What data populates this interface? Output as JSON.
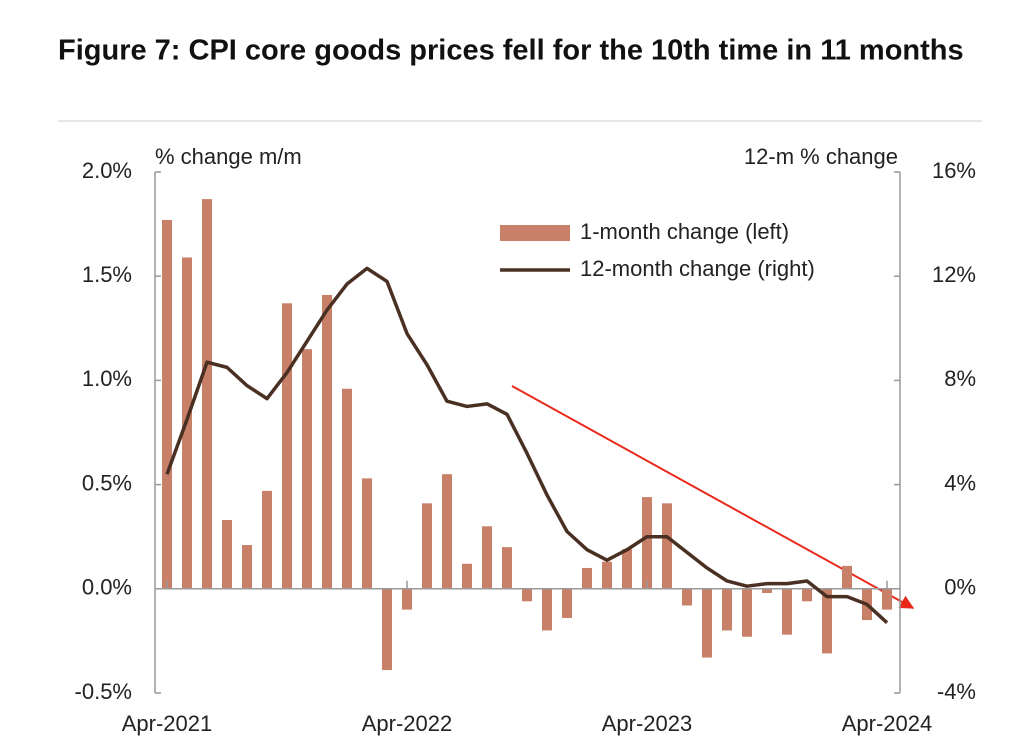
{
  "chart_data": {
    "type": "bar_line",
    "title": "Figure 7: CPI core goods prices fell for the 10th time in 11 months",
    "y_label": "% change m/m",
    "y2_label": "12-m % change",
    "categories": [
      "Apr-2021",
      null,
      null,
      null,
      null,
      null,
      null,
      null,
      null,
      null,
      null,
      null,
      "Apr-2022",
      null,
      null,
      null,
      null,
      null,
      null,
      null,
      null,
      null,
      null,
      null,
      "Apr-2023",
      null,
      null,
      null,
      null,
      null,
      null,
      null,
      null,
      null,
      null,
      null,
      "Apr-2024"
    ],
    "series": [
      {
        "name": "1-month change (left)",
        "type": "bar",
        "color": "#c98068",
        "values": [
          1.77,
          1.59,
          1.87,
          0.33,
          0.21,
          0.47,
          1.37,
          1.15,
          1.41,
          0.96,
          0.53,
          -0.39,
          -0.1,
          0.41,
          0.55,
          0.12,
          0.3,
          0.2,
          -0.06,
          -0.2,
          -0.14,
          0.1,
          0.13,
          0.19,
          0.44,
          0.41,
          -0.08,
          -0.33,
          -0.2,
          -0.23,
          -0.02,
          -0.22,
          -0.06,
          -0.31,
          0.11,
          -0.15,
          -0.1
        ]
      },
      {
        "name": "12-month change (right)",
        "type": "line",
        "axis": "y2",
        "color": "#4a3023",
        "values": [
          4.4,
          6.5,
          8.7,
          8.5,
          7.8,
          7.3,
          8.3,
          9.5,
          10.7,
          11.7,
          12.3,
          11.8,
          9.8,
          8.6,
          7.2,
          7.0,
          7.1,
          6.7,
          5.2,
          3.6,
          2.2,
          1.5,
          1.1,
          1.5,
          2.0,
          2.0,
          1.4,
          0.8,
          0.3,
          0.1,
          0.2,
          0.2,
          0.3,
          -0.3,
          -0.3,
          -0.6,
          -1.3
        ]
      }
    ],
    "ylim": [
      -0.5,
      2.0
    ],
    "yticks": [
      {
        "value": -0.5,
        "label": "-0.5%"
      },
      {
        "value": 0,
        "label": "0.0%"
      },
      {
        "value": 0.5,
        "label": "0.5%"
      },
      {
        "value": 1.0,
        "label": "1.0%"
      },
      {
        "value": 1.5,
        "label": "1.5%"
      },
      {
        "value": 2.0,
        "label": "2.0%"
      }
    ],
    "y2lim": [
      -4,
      16
    ],
    "y2ticks": [
      {
        "value": -4,
        "label": "-4%"
      },
      {
        "value": 0,
        "label": "0%"
      },
      {
        "value": 4,
        "label": "4%"
      },
      {
        "value": 8,
        "label": "8%"
      },
      {
        "value": 12,
        "label": "12%"
      },
      {
        "value": 16,
        "label": "16%"
      }
    ],
    "legend": "upper right"
  }
}
